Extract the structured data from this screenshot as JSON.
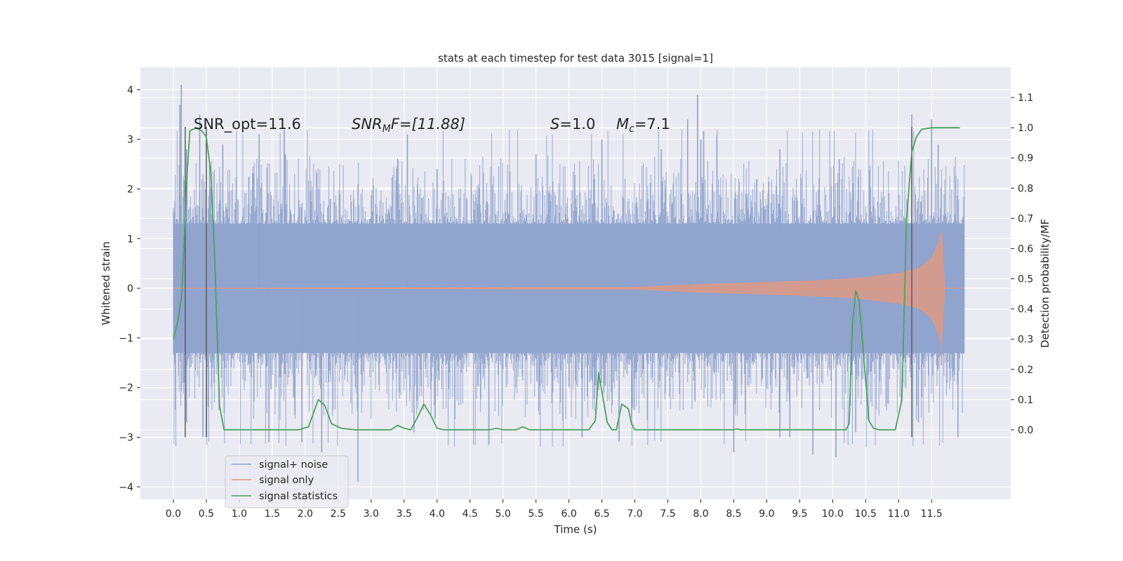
{
  "figure": {
    "title": "stats at each timestep for test data 3015 [signal=1]"
  },
  "annotations": {
    "snr_opt": "SNR_opt=11.6",
    "snr_mf_main": "SNR",
    "snr_mf_sub": "M",
    "snr_mf_rest": "F=[11.88]",
    "s_var": "S",
    "s_rest": "=1.0",
    "mc_var": "M",
    "mc_sub": "c",
    "mc_rest": "=7.1"
  },
  "legend": {
    "items": [
      {
        "label": "signal+ noise",
        "color": "#8fa3cc"
      },
      {
        "label": "signal only",
        "color": "#dd9a84"
      },
      {
        "label": "signal statistics",
        "color": "#4aa35a"
      }
    ],
    "placement": "lower-left"
  },
  "chart_data": {
    "type": "line",
    "title": "stats at each timestep for test data 3015 [signal=1]",
    "xlabel": "Time (s)",
    "ylabel": "Whitened strain",
    "y2label": "Detection probability/MF",
    "xlim": [
      -0.5,
      12.7
    ],
    "ylim": [
      -4.25,
      4.45
    ],
    "y2lim": [
      -0.23,
      1.2
    ],
    "grid": true,
    "x_ticks": [
      "0.0",
      "0.5",
      "1.0",
      "1.5",
      "2.0",
      "2.5",
      "3.0",
      "3.5",
      "4.0",
      "4.5",
      "5.0",
      "5.5",
      "6.0",
      "6.5",
      "7.0",
      "7.5",
      "8.0",
      "8.5",
      "9.0",
      "9.5",
      "10.0",
      "10.5",
      "11.0",
      "11.5"
    ],
    "y_ticks": [
      "4",
      "3",
      "2",
      "1",
      "0",
      "−1",
      "−2",
      "−3",
      "−4"
    ],
    "y2_ticks": [
      "1.1",
      "1.0",
      "0.9",
      "0.8",
      "0.7",
      "0.6",
      "0.5",
      "0.4",
      "0.3",
      "0.2",
      "0.1",
      "0.0"
    ],
    "series": [
      {
        "name": "signal+ noise",
        "color": "#8fa3cc",
        "t_range": [
          0.0,
          12.0
        ],
        "core_amplitude": 1.3,
        "peaks": [
          {
            "t": 0.05,
            "y": 1.4
          },
          {
            "t": 0.1,
            "y": 3.7
          },
          {
            "t": 0.12,
            "y": 4.1
          },
          {
            "t": 0.2,
            "y": 2.8
          },
          {
            "t": 0.4,
            "y": 3.5
          },
          {
            "t": 0.55,
            "y": 2.5
          },
          {
            "t": 0.75,
            "y": 2.9
          },
          {
            "t": 1.3,
            "y": 2.6
          },
          {
            "t": 1.3,
            "y": 3.1
          },
          {
            "t": 1.7,
            "y": 2.7
          },
          {
            "t": 2.2,
            "y": 2.0
          },
          {
            "t": 3.55,
            "y": 3.1
          },
          {
            "t": 4.0,
            "y": 2.4
          },
          {
            "t": 5.5,
            "y": 2.7
          },
          {
            "t": 6.5,
            "y": 3.0
          },
          {
            "t": 7.4,
            "y": 2.8
          },
          {
            "t": 7.8,
            "y": 3.4
          },
          {
            "t": 7.95,
            "y": 3.9
          },
          {
            "t": 8.0,
            "y": 3.0
          },
          {
            "t": 9.2,
            "y": 2.8
          },
          {
            "t": 10.1,
            "y": 2.6
          },
          {
            "t": 11.2,
            "y": 3.5
          },
          {
            "t": 11.5,
            "y": 3.4
          },
          {
            "t": 11.6,
            "y": 2.9
          }
        ],
        "troughs": [
          {
            "t": 0.2,
            "y": -2.7
          },
          {
            "t": 0.45,
            "y": -3.0
          },
          {
            "t": 1.45,
            "y": -3.1
          },
          {
            "t": 1.95,
            "y": -3.1
          },
          {
            "t": 2.25,
            "y": -3.3
          },
          {
            "t": 2.8,
            "y": -3.9
          },
          {
            "t": 3.65,
            "y": -2.9
          },
          {
            "t": 6.2,
            "y": -3.0
          },
          {
            "t": 8.5,
            "y": -3.3
          },
          {
            "t": 9.2,
            "y": -3.0
          },
          {
            "t": 9.35,
            "y": -3.0
          },
          {
            "t": 9.7,
            "y": -3.35
          },
          {
            "t": 10.05,
            "y": -3.4
          },
          {
            "t": 10.35,
            "y": -2.9
          },
          {
            "t": 11.3,
            "y": -2.7
          },
          {
            "t": 11.9,
            "y": -3.0
          }
        ]
      },
      {
        "name": "signal only",
        "color": "#dd9a84",
        "envelope": [
          {
            "t": 0.0,
            "amp": 0.0
          },
          {
            "t": 7.0,
            "amp": 0.02
          },
          {
            "t": 7.5,
            "amp": 0.05
          },
          {
            "t": 8.0,
            "amp": 0.08
          },
          {
            "t": 9.0,
            "amp": 0.12
          },
          {
            "t": 10.0,
            "amp": 0.17
          },
          {
            "t": 10.5,
            "amp": 0.22
          },
          {
            "t": 11.0,
            "amp": 0.3
          },
          {
            "t": 11.3,
            "amp": 0.4
          },
          {
            "t": 11.5,
            "amp": 0.6
          },
          {
            "t": 11.6,
            "amp": 0.9
          },
          {
            "t": 11.65,
            "amp": 1.15
          },
          {
            "t": 11.7,
            "amp": 0.0
          },
          {
            "t": 12.0,
            "amp": 0.0
          }
        ]
      },
      {
        "name": "signal statistics",
        "color": "#4aa35a",
        "axis": "right",
        "points": [
          [
            0.0,
            0.3
          ],
          [
            0.07,
            0.36
          ],
          [
            0.13,
            0.45
          ],
          [
            0.2,
            0.82
          ],
          [
            0.25,
            0.99
          ],
          [
            0.35,
            1.0
          ],
          [
            0.43,
            0.99
          ],
          [
            0.5,
            0.97
          ],
          [
            0.57,
            0.85
          ],
          [
            0.63,
            0.55
          ],
          [
            0.7,
            0.08
          ],
          [
            0.77,
            0.0
          ],
          [
            1.5,
            0.0
          ],
          [
            1.9,
            0.0
          ],
          [
            2.05,
            0.01
          ],
          [
            2.2,
            0.1
          ],
          [
            2.3,
            0.08
          ],
          [
            2.4,
            0.02
          ],
          [
            2.55,
            0.005
          ],
          [
            2.75,
            0.0
          ],
          [
            3.3,
            0.0
          ],
          [
            3.4,
            0.015
          ],
          [
            3.5,
            0.005
          ],
          [
            3.6,
            0.0
          ],
          [
            3.7,
            0.04
          ],
          [
            3.8,
            0.085
          ],
          [
            3.9,
            0.05
          ],
          [
            4.0,
            0.005
          ],
          [
            4.1,
            0.0
          ],
          [
            4.8,
            0.0
          ],
          [
            4.9,
            0.005
          ],
          [
            5.0,
            0.0
          ],
          [
            5.2,
            0.0
          ],
          [
            5.3,
            0.01
          ],
          [
            5.4,
            0.0
          ],
          [
            6.3,
            0.0
          ],
          [
            6.4,
            0.03
          ],
          [
            6.45,
            0.19
          ],
          [
            6.52,
            0.1
          ],
          [
            6.58,
            0.025
          ],
          [
            6.65,
            0.0
          ],
          [
            6.72,
            0.0
          ],
          [
            6.8,
            0.085
          ],
          [
            6.9,
            0.07
          ],
          [
            6.95,
            0.02
          ],
          [
            7.0,
            0.0
          ],
          [
            8.5,
            0.0
          ],
          [
            8.55,
            0.003
          ],
          [
            8.6,
            0.0
          ],
          [
            10.2,
            0.0
          ],
          [
            10.25,
            0.02
          ],
          [
            10.3,
            0.35
          ],
          [
            10.35,
            0.46
          ],
          [
            10.4,
            0.43
          ],
          [
            10.45,
            0.3
          ],
          [
            10.55,
            0.03
          ],
          [
            10.62,
            0.005
          ],
          [
            10.7,
            0.0
          ],
          [
            10.95,
            0.0
          ],
          [
            11.05,
            0.1
          ],
          [
            11.12,
            0.7
          ],
          [
            11.2,
            0.92
          ],
          [
            11.27,
            0.97
          ],
          [
            11.35,
            0.995
          ],
          [
            11.5,
            1.0
          ],
          [
            11.93,
            1.0
          ]
        ]
      }
    ],
    "markers": {
      "color": "#555555",
      "lines": [
        {
          "x": 0.18,
          "y_from": -3.0,
          "y_to": 3.25
        },
        {
          "x": 0.5,
          "y_from": -3.0,
          "y_to": 3.25
        },
        {
          "x": 11.2,
          "y_from": -3.0,
          "y_to": 3.25
        }
      ]
    }
  }
}
